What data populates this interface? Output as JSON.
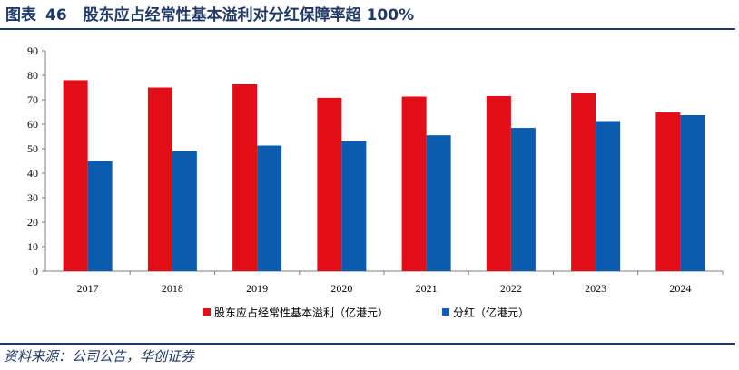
{
  "figure": {
    "label": "图表",
    "number": "46",
    "caption": "股东应占经常性基本溢利对分红保障率超 100%"
  },
  "source": "资料来源：公司公告，华创证券",
  "colors": {
    "series1": "#e30d17",
    "series2": "#0b5cb0",
    "rule": "#1f3864"
  },
  "chart_data": {
    "type": "bar",
    "categories": [
      "2017",
      "2018",
      "2019",
      "2020",
      "2021",
      "2022",
      "2023",
      "2024"
    ],
    "series": [
      {
        "name": "股东应占经常性基本溢利（亿港元）",
        "values": [
          78,
          75,
          76.3,
          70.8,
          71.3,
          71.5,
          72.8,
          64.8
        ]
      },
      {
        "name": "分红（亿港元）",
        "values": [
          45,
          49,
          51.3,
          53,
          55.5,
          58.5,
          61.3,
          63.7
        ]
      }
    ],
    "ylim": [
      0,
      90
    ],
    "yticks": [
      0,
      10,
      20,
      30,
      40,
      50,
      60,
      70,
      80,
      90
    ],
    "grid": false,
    "legend_position": "bottom"
  }
}
